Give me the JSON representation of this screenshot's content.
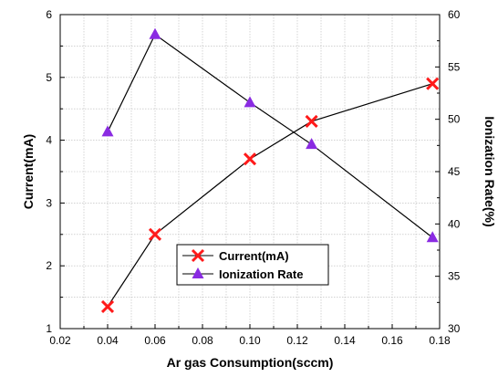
{
  "chart_data": {
    "type": "line",
    "xlabel": "Ar gas Consumption(sccm)",
    "ylabel_left": "Current(mA)",
    "ylabel_right": "Ionization Rate(%)",
    "xlim": [
      0.02,
      0.18
    ],
    "ylim_left": [
      1,
      6
    ],
    "ylim_right": [
      30,
      60
    ],
    "x_ticks": [
      "0.02",
      "0.04",
      "0.06",
      "0.08",
      "0.10",
      "0.12",
      "0.14",
      "0.16",
      "0.18"
    ],
    "y_left_ticks": [
      "1",
      "2",
      "3",
      "4",
      "5",
      "6"
    ],
    "y_right_ticks": [
      "30",
      "35",
      "40",
      "45",
      "50",
      "55",
      "60"
    ],
    "grid": true,
    "legend_position": "center-left",
    "series": [
      {
        "name": "Current(mA)",
        "axis": "left",
        "marker": "x",
        "marker_color": "#ff1a1a",
        "line_color": "#000000",
        "x": [
          0.04,
          0.06,
          0.1,
          0.126,
          0.177
        ],
        "y": [
          1.35,
          2.5,
          3.7,
          4.3,
          4.9
        ]
      },
      {
        "name": "Ionization Rate",
        "axis": "right",
        "marker": "triangle",
        "marker_color": "#8a2be2",
        "line_color": "#000000",
        "x": [
          0.04,
          0.06,
          0.1,
          0.126,
          0.177
        ],
        "y": [
          48.8,
          58.1,
          51.6,
          47.6,
          38.7
        ]
      }
    ]
  }
}
